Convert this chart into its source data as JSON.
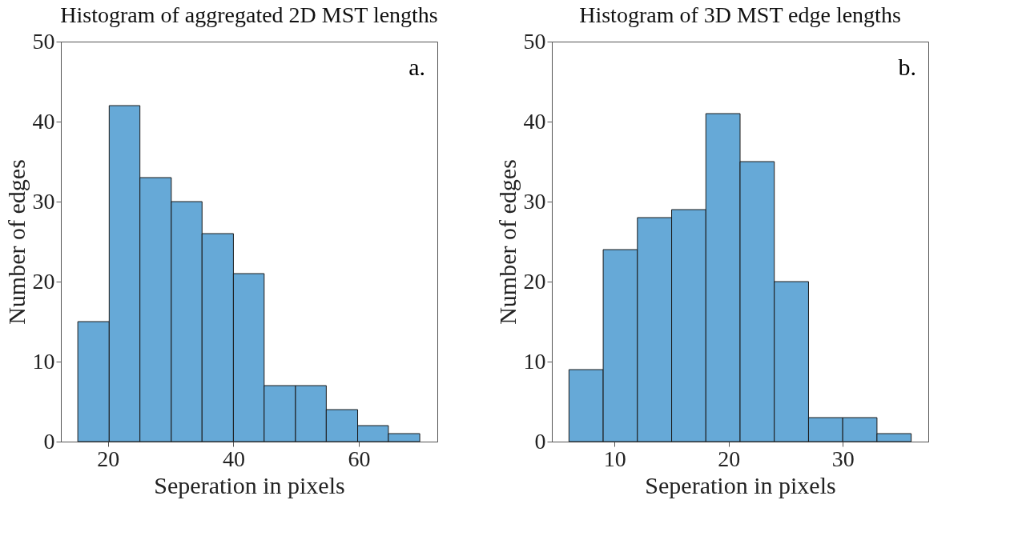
{
  "chart_data": [
    {
      "type": "histogram",
      "title": "Histogram of aggregated 2D MST lengths",
      "xlabel": "Seperation in pixels",
      "ylabel": "Number of edges",
      "color": "#66a9d7",
      "bins": [
        15.2,
        20.2,
        25.1,
        30.1,
        35.0,
        40.0,
        44.9,
        49.9,
        54.8,
        59.8,
        64.7,
        69.7
      ],
      "values": [
        15,
        42,
        33,
        30,
        26,
        21,
        7,
        7,
        4,
        2,
        1
      ],
      "xlim": [
        12.5,
        72.5
      ],
      "xticks": [
        20,
        40,
        60
      ],
      "ylim": [
        0,
        50
      ],
      "yticks": [
        0,
        10,
        20,
        30,
        40,
        50
      ],
      "annotations": [
        "a."
      ]
    },
    {
      "type": "histogram",
      "title": "Histogram of 3D MST edge lengths",
      "xlabel": "Seperation in pixels",
      "ylabel": "Number of edges",
      "color": "#66a9d7",
      "bins": [
        6,
        9,
        12,
        15,
        18,
        21,
        24,
        27,
        30,
        33,
        36
      ],
      "values": [
        9,
        24,
        28,
        29,
        41,
        35,
        20,
        3,
        3,
        1
      ],
      "xlim": [
        4.5,
        37.5
      ],
      "xticks": [
        10,
        20,
        30
      ],
      "ylim": [
        0,
        50
      ],
      "yticks": [
        0,
        10,
        20,
        30,
        40,
        50
      ],
      "annotations": [
        "b."
      ]
    }
  ]
}
